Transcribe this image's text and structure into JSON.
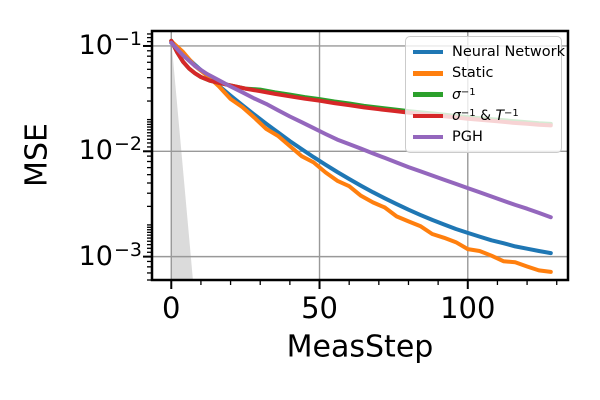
{
  "chart_data": {
    "type": "line",
    "title": "",
    "xlabel": "MeasStep",
    "ylabel": "MSE",
    "x_axis": {
      "lim": [
        -6.5,
        133.8
      ],
      "major_ticks": [
        0,
        50,
        100
      ],
      "tick_labels": [
        "0",
        "50",
        "100"
      ],
      "minor_ticks": [
        10,
        20,
        30,
        40,
        60,
        70,
        80,
        90,
        110,
        120,
        130
      ],
      "grid": true
    },
    "y_axis": {
      "scale": "log",
      "lim": [
        0.0006,
        0.1387
      ],
      "major_ticks": [
        0.1,
        0.01,
        0.001
      ],
      "tick_labels": [
        {
          "base": "10",
          "exp": "−1"
        },
        {
          "base": "10",
          "exp": "−2"
        },
        {
          "base": "10",
          "exp": "−3"
        }
      ],
      "minor_subs": [
        1.1,
        1.2,
        1.3,
        1.4,
        1.5,
        1.6,
        1.7,
        1.8,
        1.9,
        2,
        3,
        4,
        5,
        6,
        7,
        8,
        9
      ],
      "grid": true
    },
    "grid_color": "#999999",
    "legend_position": "upper right",
    "series": [
      {
        "name": "Neural Network",
        "color": "#1f77b4",
        "math": false,
        "points": [
          [
            0,
            0.1072
          ],
          [
            4,
            0.084
          ],
          [
            8,
            0.0663
          ],
          [
            12,
            0.0526
          ],
          [
            16,
            0.042
          ],
          [
            20,
            0.0338
          ],
          [
            24,
            0.0274
          ],
          [
            28,
            0.0223
          ],
          [
            32,
            0.0183
          ],
          [
            36,
            0.0151
          ],
          [
            40,
            0.0125
          ],
          [
            44,
            0.0105
          ],
          [
            48,
            0.00881
          ],
          [
            52,
            0.00746
          ],
          [
            56,
            0.00636
          ],
          [
            60,
            0.00546
          ],
          [
            64,
            0.00471
          ],
          [
            68,
            0.00409
          ],
          [
            72,
            0.00358
          ],
          [
            76,
            0.00315
          ],
          [
            80,
            0.00279
          ],
          [
            84,
            0.00249
          ],
          [
            88,
            0.00223
          ],
          [
            92,
            0.00202
          ],
          [
            96,
            0.00183
          ],
          [
            100,
            0.00168
          ],
          [
            104,
            0.00155
          ],
          [
            108,
            0.00143
          ],
          [
            112,
            0.00134
          ],
          [
            116,
            0.00125
          ],
          [
            120,
            0.00119
          ],
          [
            124,
            0.00113
          ],
          [
            128,
            0.00108
          ]
        ]
      },
      {
        "name": "Static",
        "color": "#ff7f0e",
        "math": false,
        "points": [
          [
            0,
            0.1109
          ],
          [
            4,
            0.0877
          ],
          [
            8,
            0.0646
          ],
          [
            12,
            0.0525
          ],
          [
            16,
            0.0416
          ],
          [
            20,
            0.0314
          ],
          [
            24,
            0.0263
          ],
          [
            28,
            0.0209
          ],
          [
            32,
            0.0163
          ],
          [
            36,
            0.014
          ],
          [
            40,
            0.0112
          ],
          [
            44,
            0.00898
          ],
          [
            48,
            0.00784
          ],
          [
            52,
            0.00631
          ],
          [
            56,
            0.00525
          ],
          [
            60,
            0.00466
          ],
          [
            64,
            0.00378
          ],
          [
            68,
            0.00327
          ],
          [
            72,
            0.00293
          ],
          [
            76,
            0.00241
          ],
          [
            80,
            0.00216
          ],
          [
            84,
            0.00195
          ],
          [
            88,
            0.00164
          ],
          [
            92,
            0.00151
          ],
          [
            96,
            0.00137
          ],
          [
            100,
            0.00118
          ],
          [
            104,
            0.00113
          ],
          [
            108,
            0.00102
          ],
          [
            112,
            0.000905
          ],
          [
            116,
            0.000884
          ],
          [
            120,
            0.000806
          ],
          [
            124,
            0.00074
          ],
          [
            128,
            0.000717
          ]
        ]
      },
      {
        "name": "σ⁻¹",
        "color": "#2ca02c",
        "math": true,
        "points": [
          [
            0,
            0.112
          ],
          [
            2,
            0.0871
          ],
          [
            4,
            0.0708
          ],
          [
            6,
            0.061
          ],
          [
            8,
            0.055
          ],
          [
            10,
            0.0507
          ],
          [
            13,
            0.0468
          ],
          [
            16,
            0.0447
          ],
          [
            20,
            0.0422
          ],
          [
            25,
            0.0394
          ],
          [
            30,
            0.0385
          ],
          [
            35,
            0.0363
          ],
          [
            40,
            0.0345
          ],
          [
            45,
            0.0327
          ],
          [
            50,
            0.0313
          ],
          [
            55,
            0.0297
          ],
          [
            60,
            0.0284
          ],
          [
            65,
            0.027
          ],
          [
            70,
            0.026
          ],
          [
            75,
            0.025
          ],
          [
            80,
            0.0241
          ],
          [
            85,
            0.0233
          ],
          [
            90,
            0.0226
          ],
          [
            95,
            0.0218
          ],
          [
            100,
            0.0211
          ],
          [
            105,
            0.0205
          ],
          [
            110,
            0.02
          ],
          [
            115,
            0.0194
          ],
          [
            120,
            0.0189
          ],
          [
            124,
            0.0185
          ],
          [
            128,
            0.0182
          ]
        ]
      },
      {
        "name": "σ⁻¹ & T⁻¹",
        "color": "#d62728",
        "math": true,
        "points": [
          [
            0,
            0.112
          ],
          [
            2,
            0.0871
          ],
          [
            4,
            0.0708
          ],
          [
            6,
            0.061
          ],
          [
            8,
            0.055
          ],
          [
            10,
            0.0507
          ],
          [
            13,
            0.0468
          ],
          [
            16,
            0.0447
          ],
          [
            20,
            0.0422
          ],
          [
            25,
            0.0394
          ],
          [
            30,
            0.0372
          ],
          [
            35,
            0.0351
          ],
          [
            40,
            0.0333
          ],
          [
            45,
            0.0316
          ],
          [
            50,
            0.0302
          ],
          [
            55,
            0.0287
          ],
          [
            60,
            0.0274
          ],
          [
            65,
            0.0261
          ],
          [
            70,
            0.0251
          ],
          [
            75,
            0.0242
          ],
          [
            80,
            0.0233
          ],
          [
            85,
            0.0225
          ],
          [
            90,
            0.0218
          ],
          [
            95,
            0.0211
          ],
          [
            100,
            0.0204
          ],
          [
            105,
            0.0198
          ],
          [
            110,
            0.0193
          ],
          [
            115,
            0.0187
          ],
          [
            120,
            0.0183
          ],
          [
            124,
            0.0179
          ],
          [
            128,
            0.0176
          ]
        ]
      },
      {
        "name": "PGH",
        "color": "#9467bd",
        "math": false,
        "points": [
          [
            0,
            0.1072
          ],
          [
            4,
            0.0813
          ],
          [
            8,
            0.0646
          ],
          [
            12,
            0.0543
          ],
          [
            16,
            0.0473
          ],
          [
            20,
            0.0412
          ],
          [
            24,
            0.0363
          ],
          [
            28,
            0.0317
          ],
          [
            32,
            0.0282
          ],
          [
            36,
            0.0245
          ],
          [
            40,
            0.0214
          ],
          [
            44,
            0.0189
          ],
          [
            48,
            0.0166
          ],
          [
            52,
            0.0146
          ],
          [
            56,
            0.0129
          ],
          [
            60,
            0.0117
          ],
          [
            64,
            0.0106
          ],
          [
            68,
            0.00955
          ],
          [
            72,
            0.00865
          ],
          [
            76,
            0.00782
          ],
          [
            80,
            0.00708
          ],
          [
            84,
            0.00646
          ],
          [
            88,
            0.00589
          ],
          [
            92,
            0.00537
          ],
          [
            96,
            0.0049
          ],
          [
            100,
            0.00447
          ],
          [
            104,
            0.00408
          ],
          [
            108,
            0.00372
          ],
          [
            112,
            0.00339
          ],
          [
            116,
            0.0031
          ],
          [
            120,
            0.00285
          ],
          [
            124,
            0.0026
          ],
          [
            128,
            0.00237
          ]
        ]
      }
    ],
    "shaded_region": {
      "label": "uncertainty-cone",
      "color": "#bdbdbd",
      "opacity": 0.55,
      "points": [
        [
          0,
          0.115
        ],
        [
          3.4,
          0.01
        ],
        [
          6.6,
          0.001
        ],
        [
          7.3,
          0.0006
        ],
        [
          0,
          0.0006
        ]
      ]
    }
  }
}
